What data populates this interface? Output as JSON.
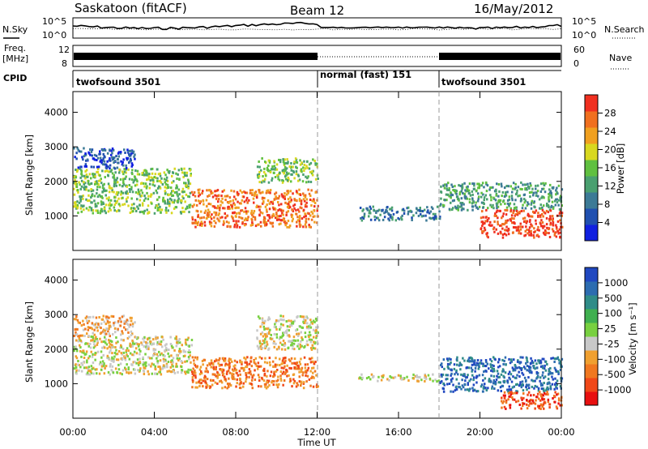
{
  "header": {
    "site": "Saskatoon (fitACF)",
    "beam": "Beam 12",
    "date": "16/May/2012"
  },
  "strip_labels": {
    "nsky": "N.Sky",
    "nsky_ticks": [
      "10^5",
      "10^0"
    ],
    "nsearch": "N.Search",
    "nsearch_ticks": [
      "10^5",
      "10^0"
    ],
    "freq_line1": "Freq.",
    "freq_line2": "[MHz]",
    "freq_ticks": [
      "12",
      "8"
    ],
    "nave": "Nave",
    "nave_ticks": [
      "60",
      "0"
    ],
    "cpid": "CPID"
  },
  "cpid_segments": [
    {
      "label": "twofsound 3501",
      "start_hour": 0,
      "end_hour": 12
    },
    {
      "label": "normal (fast) 151",
      "start_hour": 12,
      "end_hour": 18
    },
    {
      "label": "twofsound 3501",
      "start_hour": 18,
      "end_hour": 24
    }
  ],
  "axes": {
    "ylabel": "Slant Range [km]",
    "xlabel": "Time UT",
    "x_ticks": [
      "00:00",
      "04:00",
      "08:00",
      "12:00",
      "16:00",
      "20:00",
      "00:00"
    ],
    "y_ticks": [
      "1000",
      "2000",
      "3000",
      "4000"
    ]
  },
  "power_colorbar": {
    "label": "Power [dB]",
    "ticks": [
      "4",
      "8",
      "12",
      "16",
      "20",
      "24",
      "28"
    ],
    "colors": [
      "#1020e0",
      "#2050b0",
      "#3c7a96",
      "#4aa070",
      "#60c040",
      "#d8d820",
      "#f0a020",
      "#f07020",
      "#f03020"
    ]
  },
  "velocity_colorbar": {
    "label": "Velocity [m s⁻¹]",
    "ticks": [
      "1000",
      "500",
      "100",
      "25",
      "-25",
      "-100",
      "-500",
      "-1000"
    ],
    "colors": [
      "#2048c0",
      "#2c6cb0",
      "#2f8c88",
      "#40b050",
      "#78d040",
      "#c8c8c8",
      "#f0a030",
      "#f07820",
      "#f04818",
      "#e81010"
    ]
  },
  "chart_data": [
    {
      "type": "heatmap",
      "title": "Power",
      "x_range_hours": [
        0,
        24
      ],
      "ylim": [
        0,
        4600
      ],
      "value_unit": "dB",
      "bands": [
        {
          "start_hour": 0.0,
          "end_hour": 5.8,
          "min_km": 1100,
          "max_km": 2400,
          "level": 4
        },
        {
          "start_hour": 0.0,
          "end_hour": 3.0,
          "min_km": 2400,
          "max_km": 3000,
          "level": 1
        },
        {
          "start_hour": 5.8,
          "end_hour": 12.0,
          "min_km": 700,
          "max_km": 1800,
          "level": 7
        },
        {
          "start_hour": 9.0,
          "end_hour": 12.0,
          "min_km": 2000,
          "max_km": 2700,
          "level": 4
        },
        {
          "start_hour": 14.0,
          "end_hour": 18.0,
          "min_km": 900,
          "max_km": 1300,
          "level": 2
        },
        {
          "start_hour": 18.0,
          "end_hour": 24.0,
          "min_km": 1200,
          "max_km": 2000,
          "level": 3
        },
        {
          "start_hour": 20.0,
          "end_hour": 24.0,
          "min_km": 400,
          "max_km": 1200,
          "level": 8
        }
      ]
    },
    {
      "type": "heatmap",
      "title": "Velocity",
      "x_range_hours": [
        0,
        24
      ],
      "ylim": [
        0,
        4600
      ],
      "value_unit": "m s-1",
      "bands": [
        {
          "start_hour": 0.0,
          "end_hour": 5.8,
          "min_km": 1300,
          "max_km": 2400,
          "level": 5
        },
        {
          "start_hour": 0.0,
          "end_hour": 3.0,
          "min_km": 2400,
          "max_km": 3000,
          "level": 6
        },
        {
          "start_hour": 5.8,
          "end_hour": 12.0,
          "min_km": 900,
          "max_km": 1800,
          "level": 7
        },
        {
          "start_hour": 9.0,
          "end_hour": 12.0,
          "min_km": 2000,
          "max_km": 3000,
          "level": 5
        },
        {
          "start_hour": 14.0,
          "end_hour": 18.0,
          "min_km": 1100,
          "max_km": 1300,
          "level": 5
        },
        {
          "start_hour": 18.0,
          "end_hour": 24.0,
          "min_km": 800,
          "max_km": 1800,
          "level": 1
        },
        {
          "start_hour": 21.0,
          "end_hour": 24.0,
          "min_km": 300,
          "max_km": 800,
          "level": 8
        }
      ]
    }
  ]
}
